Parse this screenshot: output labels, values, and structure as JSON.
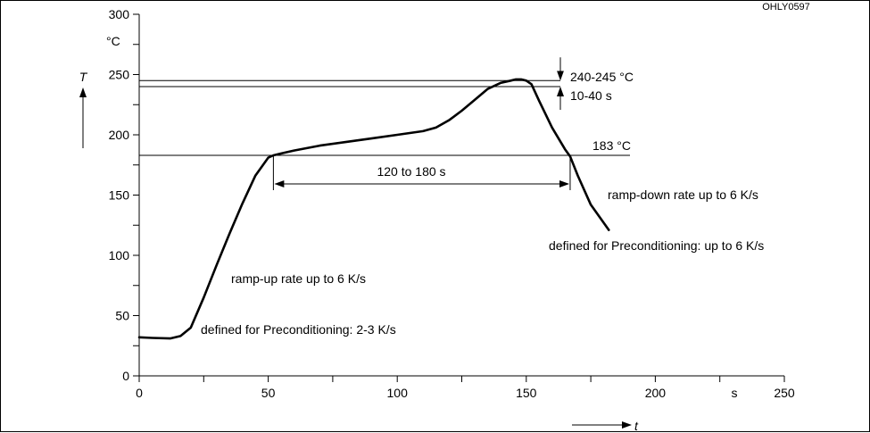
{
  "doc_code": "OHLY0597",
  "chart_data": {
    "type": "line",
    "title": "",
    "xlabel": "t",
    "ylabel": "T",
    "x_unit": "s",
    "y_unit": "°C",
    "xlim": [
      0,
      250
    ],
    "ylim": [
      0,
      300
    ],
    "x_ticks": [
      0,
      50,
      100,
      150,
      200,
      250
    ],
    "x_ticks_unlabeled": [
      25,
      75,
      125,
      175,
      225
    ],
    "y_ticks": [
      0,
      50,
      100,
      150,
      200,
      250,
      300
    ],
    "y_ticks_unlabeled": [
      25,
      75,
      125,
      175,
      225,
      275
    ],
    "grid": false,
    "series": [
      {
        "x": [
          0,
          5,
          12,
          16,
          20,
          25,
          30,
          35,
          40,
          45,
          50,
          52,
          55,
          60,
          70,
          80,
          90,
          100,
          110,
          115,
          120,
          125,
          130,
          135,
          140,
          144,
          146,
          148,
          150,
          152,
          155,
          160,
          165,
          167,
          170,
          175,
          182
        ],
        "y": [
          32,
          31.5,
          31,
          33,
          40,
          65,
          92,
          118,
          143,
          166,
          181,
          183,
          184.5,
          187,
          191,
          194,
          197,
          200,
          203,
          206,
          212,
          220,
          229,
          238,
          243,
          245,
          246,
          246,
          245,
          242,
          228,
          206,
          188,
          182,
          166,
          142,
          121
        ]
      }
    ],
    "reference_lines": [
      {
        "y": 245
      },
      {
        "y": 240
      },
      {
        "y": 183
      }
    ],
    "annotations": {
      "peak_temp": "240-245 °C",
      "peak_time": "10-40 s",
      "liquidus": "183 °C",
      "time_above": "120 to 180 s",
      "ramp_up": "ramp-up rate up to 6 K/s",
      "ramp_up_precond": "defined for Preconditioning: 2-3 K/s",
      "ramp_down": "ramp-down rate up to 6 K/s",
      "ramp_down_precond": "defined for Preconditioning: up to 6 K/s"
    },
    "time_above_span": [
      52,
      167
    ]
  }
}
